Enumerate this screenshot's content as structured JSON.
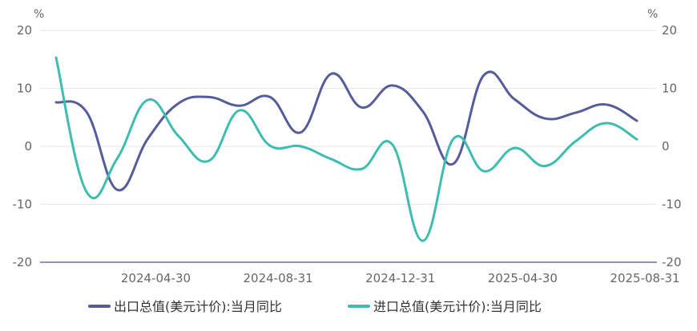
{
  "chart_data": {
    "type": "line",
    "y_unit_left": "%",
    "y_unit_right": "%",
    "ylim": [
      -20,
      20
    ],
    "y_ticks": [
      "20",
      "10",
      "0",
      "-10",
      "-20"
    ],
    "x_tick_labels": [
      "2024-04-30",
      "2024-08-31",
      "2024-12-31",
      "2025-04-30",
      "2025-08-31"
    ],
    "x": [
      "2024-01",
      "2024-02",
      "2024-03",
      "2024-04",
      "2024-05",
      "2024-06",
      "2024-07",
      "2024-08",
      "2024-09",
      "2024-10",
      "2024-11",
      "2024-12",
      "2025-01",
      "2025-02",
      "2025-03",
      "2025-04",
      "2025-05",
      "2025-06",
      "2025-07",
      "2025-08"
    ],
    "series": [
      {
        "name": "出口总值(美元计价):当月同比",
        "color": "#545c9a",
        "values": [
          7.6,
          5.9,
          -7.5,
          1.3,
          7.4,
          8.5,
          7.0,
          8.5,
          2.4,
          12.5,
          6.7,
          10.5,
          6.0,
          -3.0,
          12.3,
          8.1,
          4.8,
          5.8,
          7.2,
          4.4
        ]
      },
      {
        "name": "进口总值(美元计价):当月同比",
        "color": "#3dbdb2",
        "values": [
          15.3,
          -7.9,
          -2.1,
          8.0,
          1.8,
          -2.5,
          6.2,
          0.1,
          0.0,
          -2.2,
          -3.9,
          0.3,
          -16.3,
          1.3,
          -4.3,
          -0.3,
          -3.4,
          0.9,
          4.0,
          1.2
        ]
      }
    ],
    "legend_position": "bottom"
  }
}
